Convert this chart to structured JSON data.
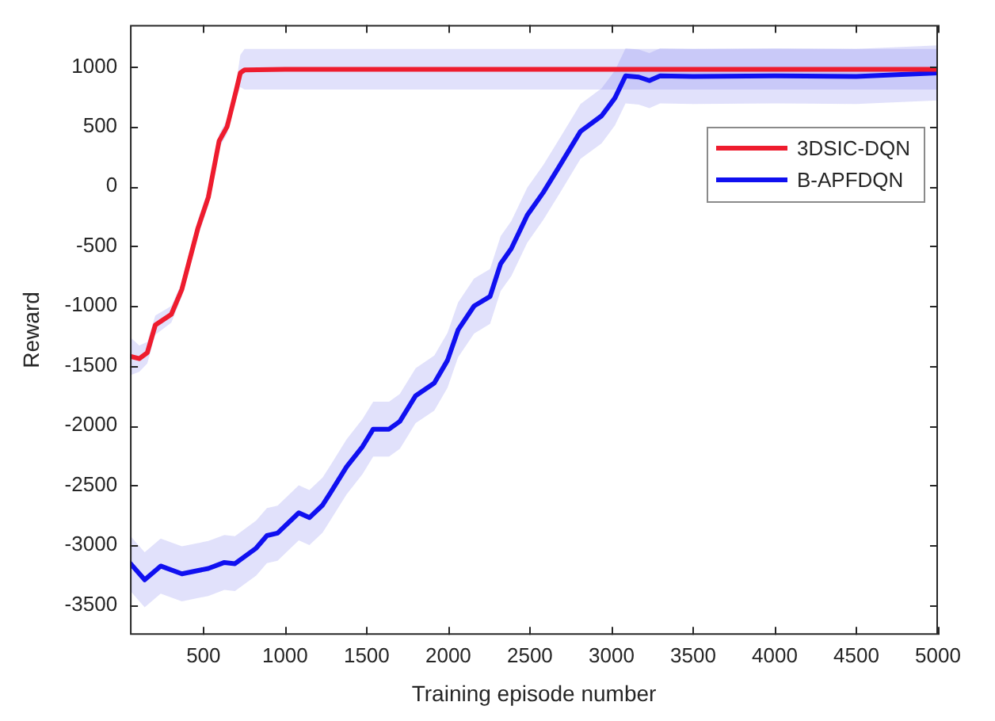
{
  "chart_data": {
    "type": "line",
    "xlabel": "Training episode number",
    "ylabel": "Reward",
    "xlim": [
      50,
      5000
    ],
    "xticks": [
      500,
      1000,
      1500,
      2000,
      2500,
      3000,
      3500,
      4000,
      4500,
      5000
    ],
    "ylim": [
      -3750,
      1350
    ],
    "yticks": [
      -3500,
      -3000,
      -2500,
      -2000,
      -1500,
      -1000,
      -500,
      0,
      500,
      1000
    ],
    "grid": false,
    "legend": "top right",
    "marker": "none",
    "line_style": "solid",
    "series": [
      {
        "name": "3DSIC-DQN",
        "color": "#ee1c2e",
        "x": [
          50,
          107,
          156,
          205,
          303,
          368,
          466,
          530,
          596,
          645,
          700,
          726,
          752,
          1000,
          1500,
          2000,
          2500,
          3000,
          3500,
          4000,
          4500,
          5000
        ],
        "values": [
          -1420,
          -1440,
          -1390,
          -1160,
          -1070,
          -860,
          -350,
          -90,
          380,
          500,
          800,
          950,
          975,
          980,
          980,
          980,
          980,
          980,
          980,
          980,
          980,
          980
        ],
        "lower": [
          -1580,
          -1550,
          -1480,
          -1240,
          -1140,
          -920,
          -420,
          -160,
          320,
          440,
          740,
          830,
          810,
          810,
          810,
          810,
          810,
          810,
          810,
          810,
          810,
          810
        ],
        "upper": [
          -1260,
          -1330,
          -1300,
          -1080,
          -1000,
          -800,
          -280,
          -20,
          440,
          560,
          860,
          1100,
          1150,
          1150,
          1150,
          1150,
          1150,
          1150,
          1150,
          1150,
          1150,
          1150
        ]
      },
      {
        "name": "B-APFDQN",
        "color": "#1010f0",
        "x": [
          50,
          140,
          238,
          368,
          530,
          628,
          693,
          823,
          889,
          954,
          1084,
          1149,
          1230,
          1279,
          1377,
          1475,
          1540,
          1637,
          1703,
          1800,
          1914,
          1995,
          2060,
          2158,
          2256,
          2321,
          2386,
          2484,
          2582,
          2679,
          2810,
          2939,
          3021,
          3086,
          3167,
          3232,
          3298,
          3500,
          4000,
          4500,
          5000
        ],
        "values": [
          -3150,
          -3290,
          -3175,
          -3240,
          -3195,
          -3145,
          -3155,
          -3025,
          -2920,
          -2900,
          -2730,
          -2770,
          -2665,
          -2560,
          -2345,
          -2175,
          -2030,
          -2030,
          -1965,
          -1750,
          -1645,
          -1455,
          -1200,
          -1000,
          -920,
          -645,
          -520,
          -240,
          -50,
          165,
          460,
          590,
          740,
          925,
          915,
          885,
          925,
          920,
          925,
          920,
          950
        ],
        "lower": [
          -3380,
          -3520,
          -3405,
          -3470,
          -3425,
          -3375,
          -3385,
          -3255,
          -3150,
          -3130,
          -2960,
          -3000,
          -2895,
          -2790,
          -2575,
          -2405,
          -2260,
          -2260,
          -2195,
          -1980,
          -1875,
          -1685,
          -1430,
          -1230,
          -1150,
          -875,
          -750,
          -470,
          -280,
          -65,
          230,
          360,
          510,
          695,
          685,
          655,
          695,
          690,
          695,
          690,
          720
        ],
        "upper": [
          -2920,
          -3060,
          -2945,
          -3010,
          -2965,
          -2915,
          -2925,
          -2795,
          -2690,
          -2670,
          -2500,
          -2540,
          -2435,
          -2330,
          -2115,
          -1945,
          -1800,
          -1800,
          -1735,
          -1520,
          -1415,
          -1225,
          -970,
          -770,
          -690,
          -415,
          -290,
          -10,
          180,
          395,
          690,
          820,
          970,
          1155,
          1145,
          1115,
          1155,
          1150,
          1155,
          1150,
          1180
        ]
      }
    ]
  }
}
